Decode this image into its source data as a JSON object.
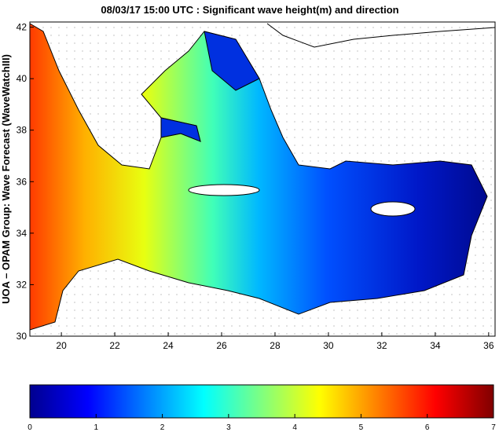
{
  "chart_data": {
    "type": "map",
    "title": "08/03/17 15:00 UTC : Significant wave height(m) and direction",
    "y_label": "UOA – OPAM Group: Wave Forecast (WaveWatchIII)",
    "xlim": [
      18.82,
      36.24
    ],
    "xticks": [
      20,
      22,
      24,
      26,
      28,
      30,
      32,
      34,
      36
    ],
    "ylim": [
      30,
      42.2
    ],
    "yticks": [
      30,
      32,
      34,
      36,
      38,
      40,
      42
    ],
    "colorbar": {
      "lim": [
        0,
        7
      ],
      "ticks": [
        0,
        1,
        2,
        3,
        4,
        5,
        6,
        7
      ]
    }
  }
}
